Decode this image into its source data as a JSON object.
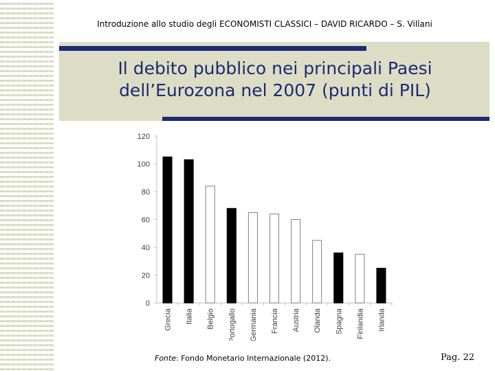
{
  "slide": {
    "header": "Introduzione allo studio degli ECONOMISTI CLASSICI – DAVID RICARDO – S. Villani",
    "title_line1": "Il debito pubblico nei principali Paesi",
    "title_line2": "dell’Eurozona nel 2007 (punti di PIL)",
    "source_label": "Fonte",
    "source_text": ": Fondo Monetario Internazionale (2012).",
    "page": "Pag. 22"
  },
  "colors": {
    "title": "#1b2a74",
    "band": "#dcddc4",
    "bar_dark": "#000000",
    "bar_light": "#ffffff"
  },
  "chart_data": {
    "type": "bar",
    "categories": [
      "Grecia",
      "Italia",
      "Belgio",
      "Portogallo",
      "Germania",
      "Francia",
      "Austria",
      "Olanda",
      "Spagna",
      "Finlandia",
      "Irlanda"
    ],
    "values": [
      105,
      103,
      84,
      68,
      65,
      64,
      60,
      45,
      36,
      35,
      25
    ],
    "fill": [
      "dark",
      "dark",
      "light",
      "dark",
      "light",
      "light",
      "light",
      "light",
      "dark",
      "light",
      "dark"
    ],
    "yticks": [
      0,
      20,
      40,
      60,
      80,
      100,
      120
    ],
    "ylim": [
      0,
      120
    ],
    "grid": false,
    "legend": "none"
  }
}
